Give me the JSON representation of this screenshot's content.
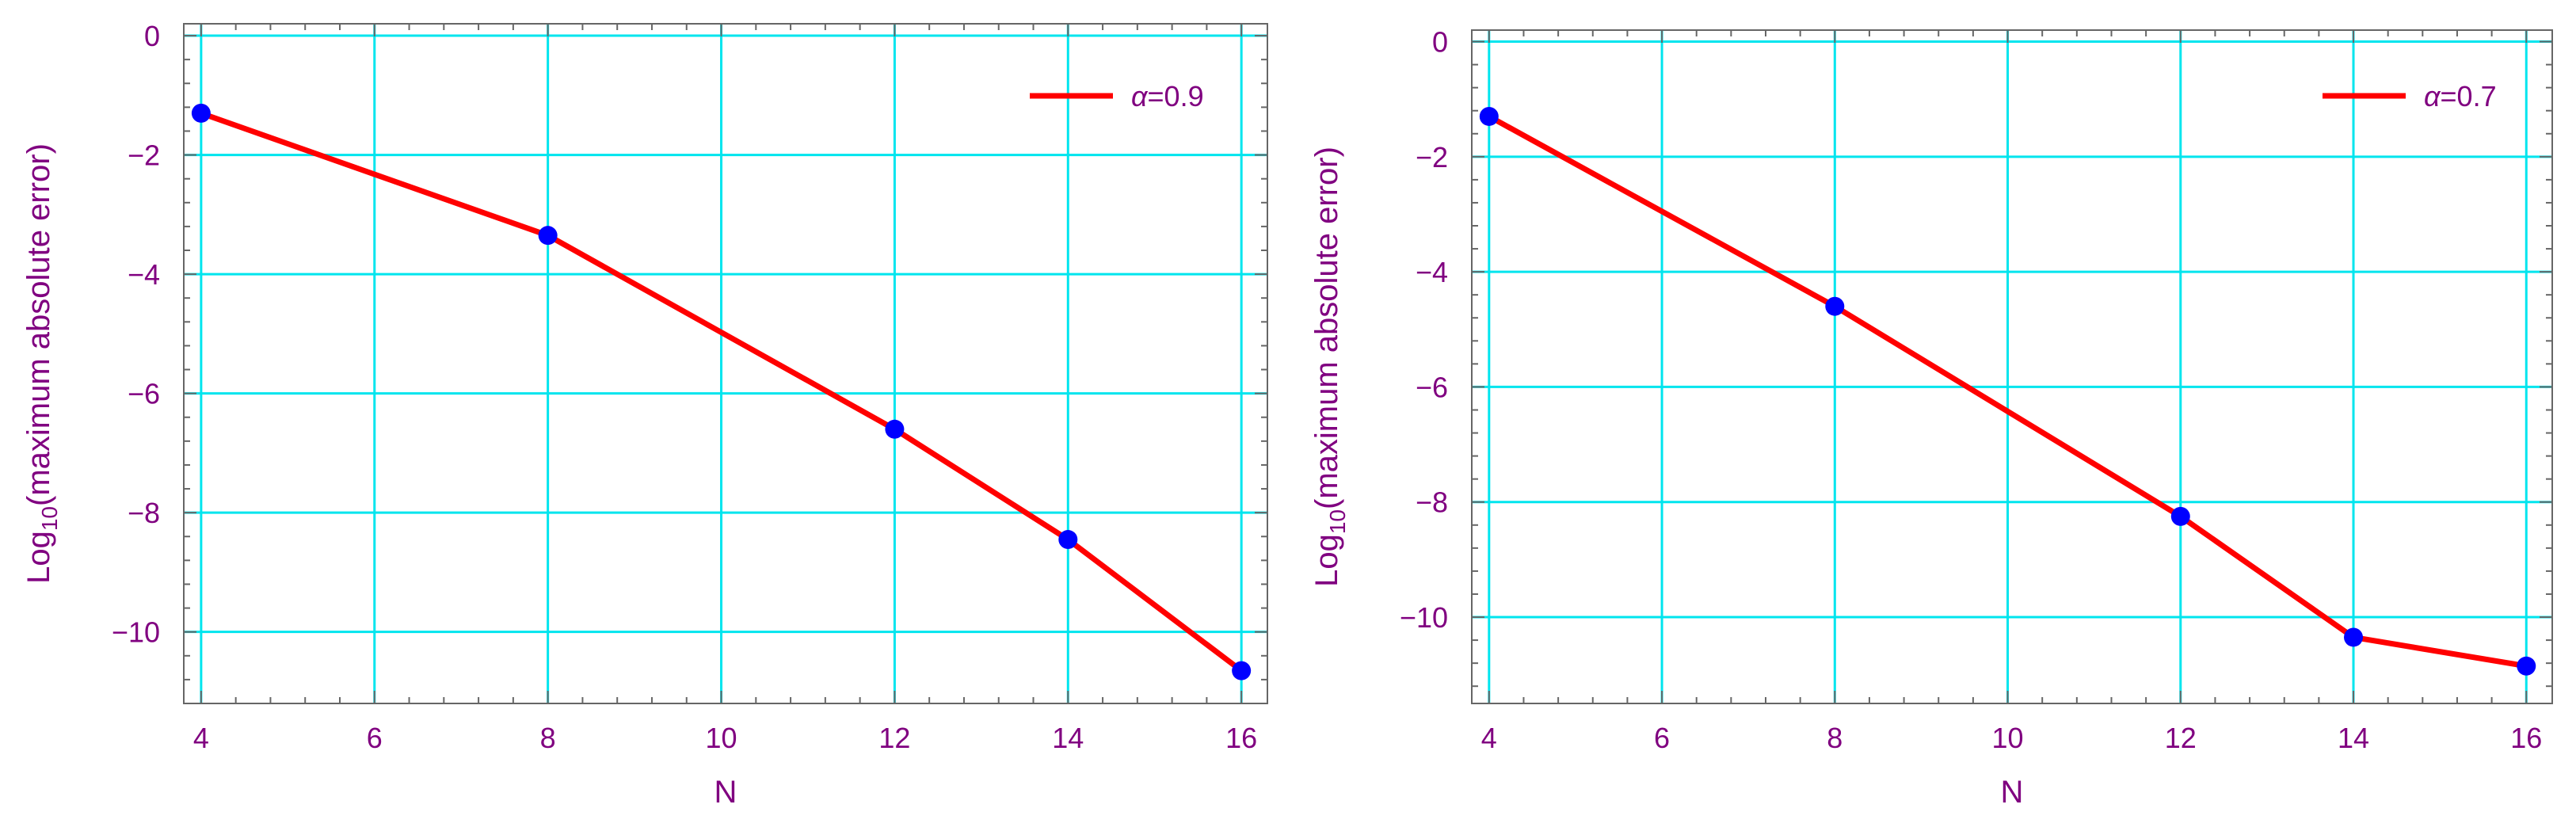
{
  "chart_data": [
    {
      "type": "line",
      "xlabel": "N",
      "ylabel_main": "Log",
      "ylabel_sub": "10",
      "ylabel_rest": "(maximum absolute error)",
      "xlim": [
        3.8,
        16.3
      ],
      "ylim": [
        -11.2,
        0.2
      ],
      "xticks": [
        4,
        6,
        8,
        10,
        12,
        14,
        16
      ],
      "yticks": [
        0,
        -2,
        -4,
        -6,
        -8,
        -10
      ],
      "grid": true,
      "legend_position": "top-right",
      "series": [
        {
          "name": "α=0.9",
          "legend_symbol": "α",
          "legend_value": "=0.9",
          "x": [
            4,
            8,
            12,
            14,
            16
          ],
          "y": [
            -1.3,
            -3.35,
            -6.6,
            -8.45,
            -10.65
          ]
        }
      ]
    },
    {
      "type": "line",
      "xlabel": "N",
      "ylabel_main": "Log",
      "ylabel_sub": "10",
      "ylabel_rest": "(maximum absolute error)",
      "xlim": [
        3.8,
        16.3
      ],
      "ylim": [
        -11.5,
        0.2
      ],
      "xticks": [
        4,
        6,
        8,
        10,
        12,
        14,
        16
      ],
      "yticks": [
        0,
        -2,
        -4,
        -6,
        -8,
        -10
      ],
      "grid": true,
      "legend_position": "top-right",
      "series": [
        {
          "name": "α=0.7",
          "legend_symbol": "α",
          "legend_value": "=0.7",
          "x": [
            4,
            8,
            12,
            14,
            16
          ],
          "y": [
            -1.3,
            -4.6,
            -8.25,
            -10.35,
            -10.85
          ]
        }
      ]
    }
  ],
  "colors": {
    "line": "#ff0000",
    "marker": "#0000ff",
    "grid": "#00e5ee",
    "text": "#800080",
    "axis": "#666666"
  }
}
